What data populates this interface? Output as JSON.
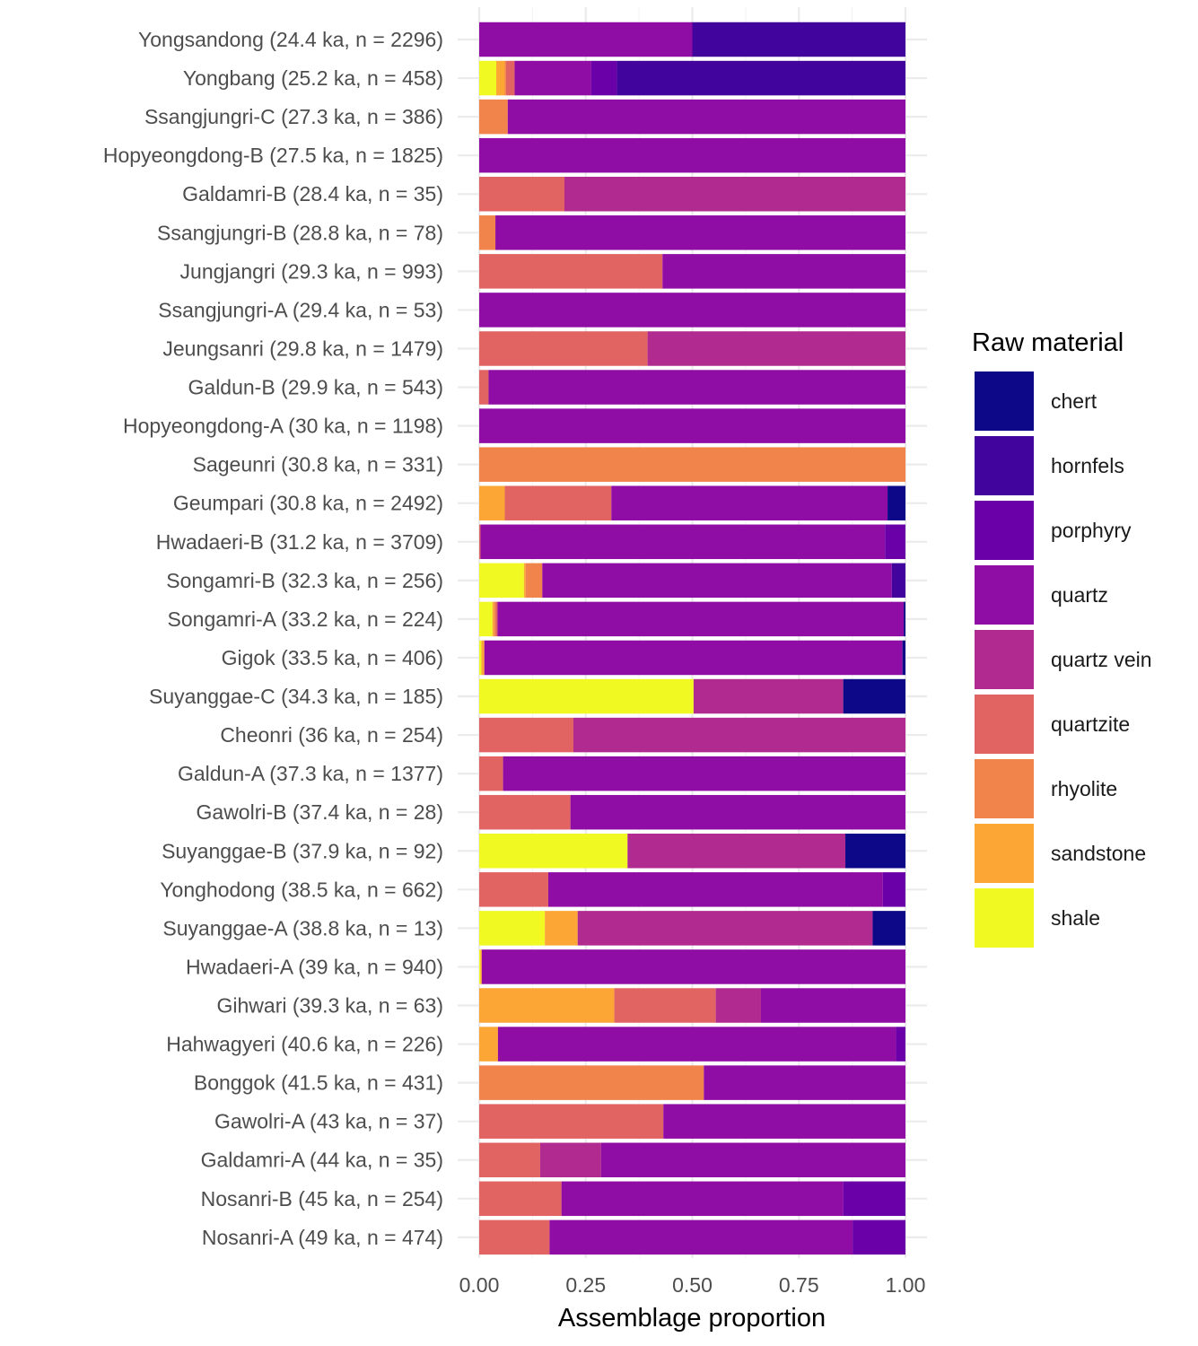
{
  "chart_data": {
    "type": "bar",
    "orientation": "horizontal",
    "stacked": true,
    "xlabel": "Assemblage proportion",
    "ylabel": "",
    "xlim": [
      0,
      1
    ],
    "xticks": [
      "0.00",
      "0.25",
      "0.50",
      "0.75",
      "1.00"
    ],
    "grid": true,
    "legend": {
      "title": "Raw material",
      "position": "right"
    },
    "materials": [
      "chert",
      "hornfels",
      "porphyry",
      "quartz",
      "quartz vein",
      "quartzite",
      "rhyolite",
      "sandstone",
      "shale"
    ],
    "colors": {
      "chert": "#0d0887",
      "hornfels": "#41049d",
      "porphyry": "#6a00a8",
      "quartz": "#8f0da4",
      "quartz vein": "#b12a90",
      "quartzite": "#e16462",
      "rhyolite": "#f1844b",
      "sandstone": "#fca636",
      "shale": "#f0f921"
    },
    "stack_order": [
      "shale",
      "sandstone",
      "rhyolite",
      "quartzite",
      "quartz vein",
      "quartz",
      "porphyry",
      "hornfels",
      "chert"
    ],
    "categories": [
      {
        "label": "Yongsandong (24.4 ka, n = 2296)",
        "values": {
          "quartz": 0.5,
          "hornfels": 0.5
        }
      },
      {
        "label": "Yongbang (25.2 ka, n = 458)",
        "values": {
          "shale": 0.04,
          "sandstone": 0.02,
          "rhyolite": 0.003,
          "quartzite": 0.02,
          "quartz": 0.18,
          "porphyry": 0.06,
          "hornfels": 0.677
        }
      },
      {
        "label": "Ssangjungri-C (27.3 ka, n = 386)",
        "values": {
          "rhyolite": 0.067,
          "quartz": 0.933
        }
      },
      {
        "label": "Hopyeongdong-B (27.5 ka, n = 1825)",
        "values": {
          "quartz": 1.0
        }
      },
      {
        "label": "Galdamri-B (28.4 ka, n = 35)",
        "values": {
          "quartzite": 0.2,
          "quartz vein": 0.8
        }
      },
      {
        "label": "Ssangjungri-B (28.8 ka, n = 78)",
        "values": {
          "rhyolite": 0.038,
          "quartz": 0.962
        }
      },
      {
        "label": "Jungjangri (29.3 ka, n = 993)",
        "values": {
          "quartzite": 0.43,
          "quartz": 0.57
        }
      },
      {
        "label": "Ssangjungri-A (29.4 ka, n = 53)",
        "values": {
          "quartz": 1.0
        }
      },
      {
        "label": "Jeungsanri (29.8 ka, n = 1479)",
        "values": {
          "quartzite": 0.395,
          "quartz vein": 0.605
        }
      },
      {
        "label": "Galdun-B (29.9 ka, n = 543)",
        "values": {
          "quartzite": 0.022,
          "quartz": 0.978
        }
      },
      {
        "label": "Hopyeongdong-A (30 ka, n = 1198)",
        "values": {
          "quartz": 1.0
        }
      },
      {
        "label": "Sageunri (30.8 ka, n = 331)",
        "values": {
          "rhyolite": 1.0
        }
      },
      {
        "label": "Geumpari (30.8 ka, n = 2492)",
        "values": {
          "sandstone": 0.06,
          "quartzite": 0.25,
          "quartz": 0.648,
          "chert": 0.042
        }
      },
      {
        "label": "Hwadaeri-B (31.2 ka, n = 3709)",
        "values": {
          "quartzite": 0.003,
          "quartz": 0.949,
          "porphyry": 0.048
        }
      },
      {
        "label": "Songamri-B (32.3 ka, n = 256)",
        "values": {
          "shale": 0.105,
          "sandstone": 0.004,
          "rhyolite": 0.039,
          "quartz": 0.82,
          "hornfels": 0.032
        }
      },
      {
        "label": "Songamri-A (33.2 ka, n = 224)",
        "values": {
          "shale": 0.031,
          "sandstone": 0.004,
          "rhyolite": 0.004,
          "quartzite": 0.004,
          "quartz": 0.953,
          "chert": 0.004
        }
      },
      {
        "label": "Gigok (33.5 ka, n = 406)",
        "values": {
          "shale": 0.005,
          "sandstone": 0.007,
          "quartz": 0.981,
          "chert": 0.007
        }
      },
      {
        "label": "Suyanggae-C (34.3 ka, n = 185)",
        "values": {
          "shale": 0.503,
          "quartz vein": 0.351,
          "chert": 0.146
        }
      },
      {
        "label": "Cheonri (36 ka, n = 254)",
        "values": {
          "quartzite": 0.221,
          "quartz vein": 0.779
        }
      },
      {
        "label": "Galdun-A (37.3 ka, n = 1377)",
        "values": {
          "quartzite": 0.056,
          "quartz": 0.944
        }
      },
      {
        "label": "Gawolri-B (37.4 ka, n = 28)",
        "values": {
          "quartzite": 0.214,
          "quartz": 0.786
        }
      },
      {
        "label": "Suyanggae-B (37.9 ka, n = 92)",
        "values": {
          "shale": 0.348,
          "quartz vein": 0.511,
          "chert": 0.141
        }
      },
      {
        "label": "Yonghodong (38.5 ka, n = 662)",
        "values": {
          "quartzite": 0.162,
          "quartz": 0.785,
          "porphyry": 0.053
        }
      },
      {
        "label": "Suyanggae-A (38.8 ka, n = 13)",
        "values": {
          "shale": 0.154,
          "sandstone": 0.077,
          "quartz vein": 0.692,
          "chert": 0.077
        }
      },
      {
        "label": "Hwadaeri-A (39 ka, n = 940)",
        "values": {
          "shale": 0.003,
          "sandstone": 0.003,
          "quartz": 0.994
        }
      },
      {
        "label": "Gihwari (39.3 ka, n = 63)",
        "values": {
          "sandstone": 0.317,
          "quartzite": 0.238,
          "quartz vein": 0.106,
          "quartz": 0.339
        }
      },
      {
        "label": "Hahwagyeri (40.6 ka, n = 226)",
        "values": {
          "sandstone": 0.044,
          "quartz": 0.934,
          "porphyry": 0.022
        }
      },
      {
        "label": "Bonggok (41.5 ka, n = 431)",
        "values": {
          "rhyolite": 0.527,
          "quartz": 0.473
        }
      },
      {
        "label": "Gawolri-A (43 ka, n = 37)",
        "values": {
          "quartzite": 0.432,
          "quartz": 0.568
        }
      },
      {
        "label": "Galdamri-A (44 ka, n = 35)",
        "values": {
          "quartzite": 0.143,
          "quartz vein": 0.143,
          "quartz": 0.714
        }
      },
      {
        "label": "Nosanri-B (45 ka, n = 254)",
        "values": {
          "quartzite": 0.193,
          "quartz": 0.661,
          "porphyry": 0.146
        }
      },
      {
        "label": "Nosanri-A (49 ka, n = 474)",
        "values": {
          "quartzite": 0.165,
          "quartz": 0.711,
          "porphyry": 0.124
        }
      }
    ]
  }
}
